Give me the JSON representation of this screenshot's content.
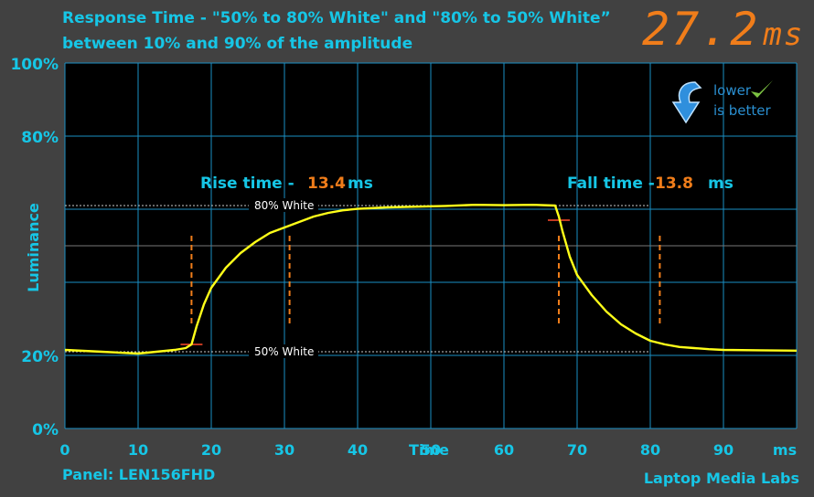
{
  "chart_data": {
    "type": "line",
    "title": "Response Time - \"50% to 80% White\" and \"80% to 50% White” between 10% and 90% of the amplitude",
    "xlabel": "Time",
    "x_unit_label": "ms",
    "ylabel": "Luminance",
    "xlim": [
      0,
      100
    ],
    "ylim": [
      0,
      100
    ],
    "x_ticks": [
      0,
      10,
      20,
      30,
      40,
      50,
      60,
      70,
      80,
      90
    ],
    "y_tick_labels": [
      {
        "value": 100,
        "label": "100%"
      },
      {
        "value": 80,
        "label": "80%"
      },
      {
        "value": 20,
        "label": "20%"
      },
      {
        "value": 0,
        "label": "0%"
      }
    ],
    "grid": true,
    "reference_lines": [
      {
        "label": "80% White",
        "y": 61
      },
      {
        "label": "50% White",
        "y": 21
      }
    ],
    "series": [
      {
        "x": [
          0,
          5,
          10,
          15,
          16.5,
          17.3,
          18,
          19,
          20,
          22,
          24,
          26,
          28,
          30,
          32,
          34,
          36,
          38,
          40,
          44,
          48,
          52,
          56,
          60,
          64,
          67,
          67.5,
          68,
          69,
          70,
          72,
          74,
          76,
          78,
          80,
          82,
          84,
          86,
          88,
          90,
          95,
          100
        ],
        "y": [
          21.5,
          21,
          20.5,
          21.5,
          22,
          23,
          28,
          34,
          38.5,
          44,
          48,
          51,
          53.5,
          55,
          56.5,
          58,
          59,
          59.7,
          60.1,
          60.5,
          60.7,
          60.9,
          61.2,
          61.1,
          61.2,
          61,
          58,
          54,
          47,
          42,
          36.5,
          32,
          28.5,
          26,
          24,
          23,
          22.3,
          22,
          21.7,
          21.5,
          21.4,
          21.3
        ]
      }
    ],
    "annotations": {
      "rise": {
        "label": "Rise time -",
        "value": "13.4",
        "unit": "ms",
        "start_x": 17.3,
        "end_x": 30.7
      },
      "fall": {
        "label": "Fall time -",
        "value": "13.8",
        "unit": "ms",
        "start_x": 67.5,
        "end_x": 81.3
      }
    },
    "total_response": {
      "value": "27.2",
      "unit": "ms"
    }
  },
  "badge": {
    "line1": "lower",
    "line2": "is better"
  },
  "footer": {
    "panel": "Panel: LEN156FHD",
    "brand": "Laptop Media Labs"
  },
  "colors": {
    "background": "#414141",
    "plot": "#000000",
    "grid": "#1a8fc4",
    "signal": "#ffff19",
    "accent": "#f07d1a",
    "text": "#16c6e6"
  }
}
